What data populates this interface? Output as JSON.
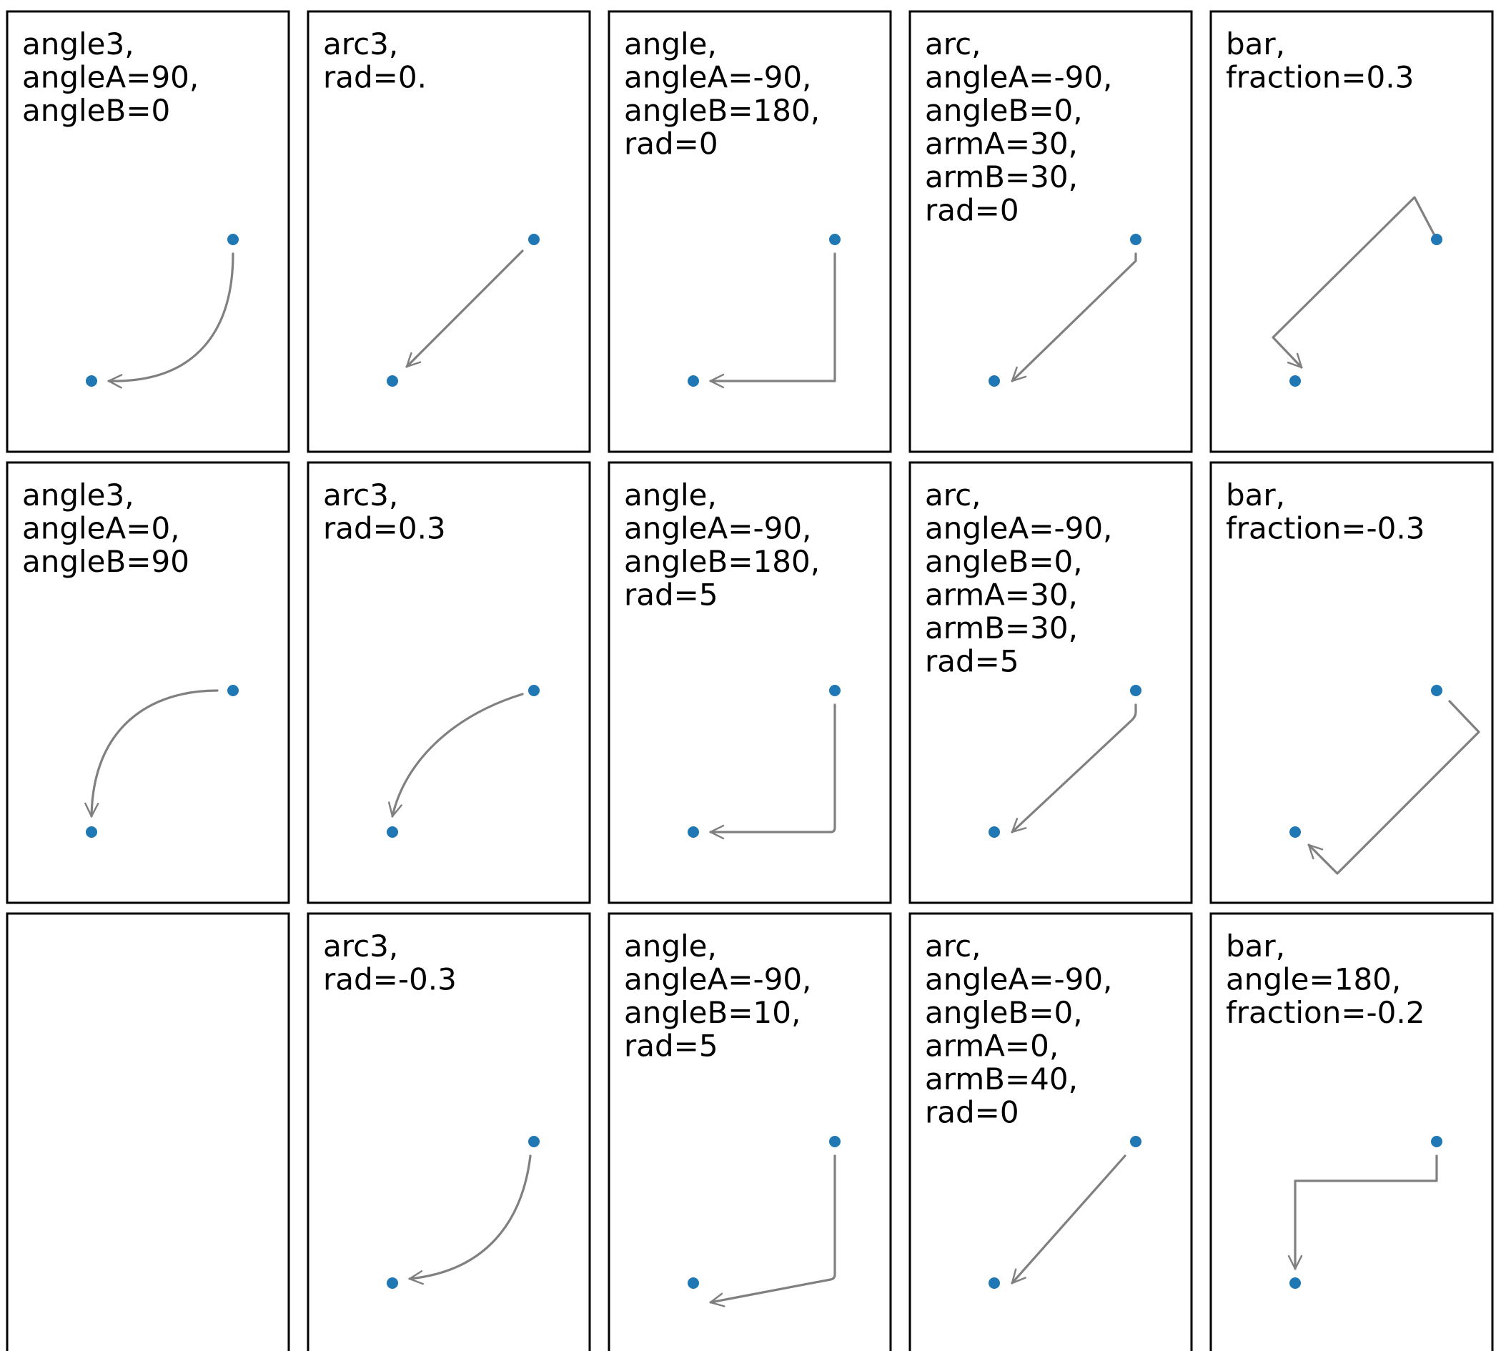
{
  "panels": [
    {
      "row": 0,
      "col": 0,
      "lines": [
        "angle3,",
        "angleA=90,",
        "angleB=0"
      ]
    },
    {
      "row": 0,
      "col": 1,
      "lines": [
        "arc3,",
        "rad=0."
      ]
    },
    {
      "row": 0,
      "col": 2,
      "lines": [
        "angle,",
        "angleA=-90,",
        "angleB=180,",
        "rad=0"
      ]
    },
    {
      "row": 0,
      "col": 3,
      "lines": [
        "arc,",
        "angleA=-90,",
        "angleB=0,",
        "armA=30,",
        "armB=30,",
        "rad=0"
      ]
    },
    {
      "row": 0,
      "col": 4,
      "lines": [
        "bar,",
        "fraction=0.3"
      ]
    },
    {
      "row": 1,
      "col": 0,
      "lines": [
        "angle3,",
        "angleA=0,",
        "angleB=90"
      ]
    },
    {
      "row": 1,
      "col": 1,
      "lines": [
        "arc3,",
        "rad=0.3"
      ]
    },
    {
      "row": 1,
      "col": 2,
      "lines": [
        "angle,",
        "angleA=-90,",
        "angleB=180,",
        "rad=5"
      ]
    },
    {
      "row": 1,
      "col": 3,
      "lines": [
        "arc,",
        "angleA=-90,",
        "angleB=0,",
        "armA=30,",
        "armB=30,",
        "rad=5"
      ]
    },
    {
      "row": 1,
      "col": 4,
      "lines": [
        "bar,",
        "fraction=-0.3"
      ]
    },
    {
      "row": 2,
      "col": 0,
      "lines": []
    },
    {
      "row": 2,
      "col": 1,
      "lines": [
        "arc3,",
        "rad=-0.3"
      ]
    },
    {
      "row": 2,
      "col": 2,
      "lines": [
        "angle,",
        "angleA=-90,",
        "angleB=10,",
        "rad=5"
      ]
    },
    {
      "row": 2,
      "col": 3,
      "lines": [
        "arc,",
        "angleA=-90,",
        "angleB=0,",
        "armA=0,",
        "armB=40,",
        "rad=0"
      ]
    },
    {
      "row": 2,
      "col": 4,
      "lines": [
        "bar,",
        "angle=180,",
        "fraction=-0.2"
      ]
    }
  ],
  "colors": {
    "point": "#1f77b4",
    "connector": "#808080",
    "frame": "#000000",
    "background": "#ffffff"
  }
}
